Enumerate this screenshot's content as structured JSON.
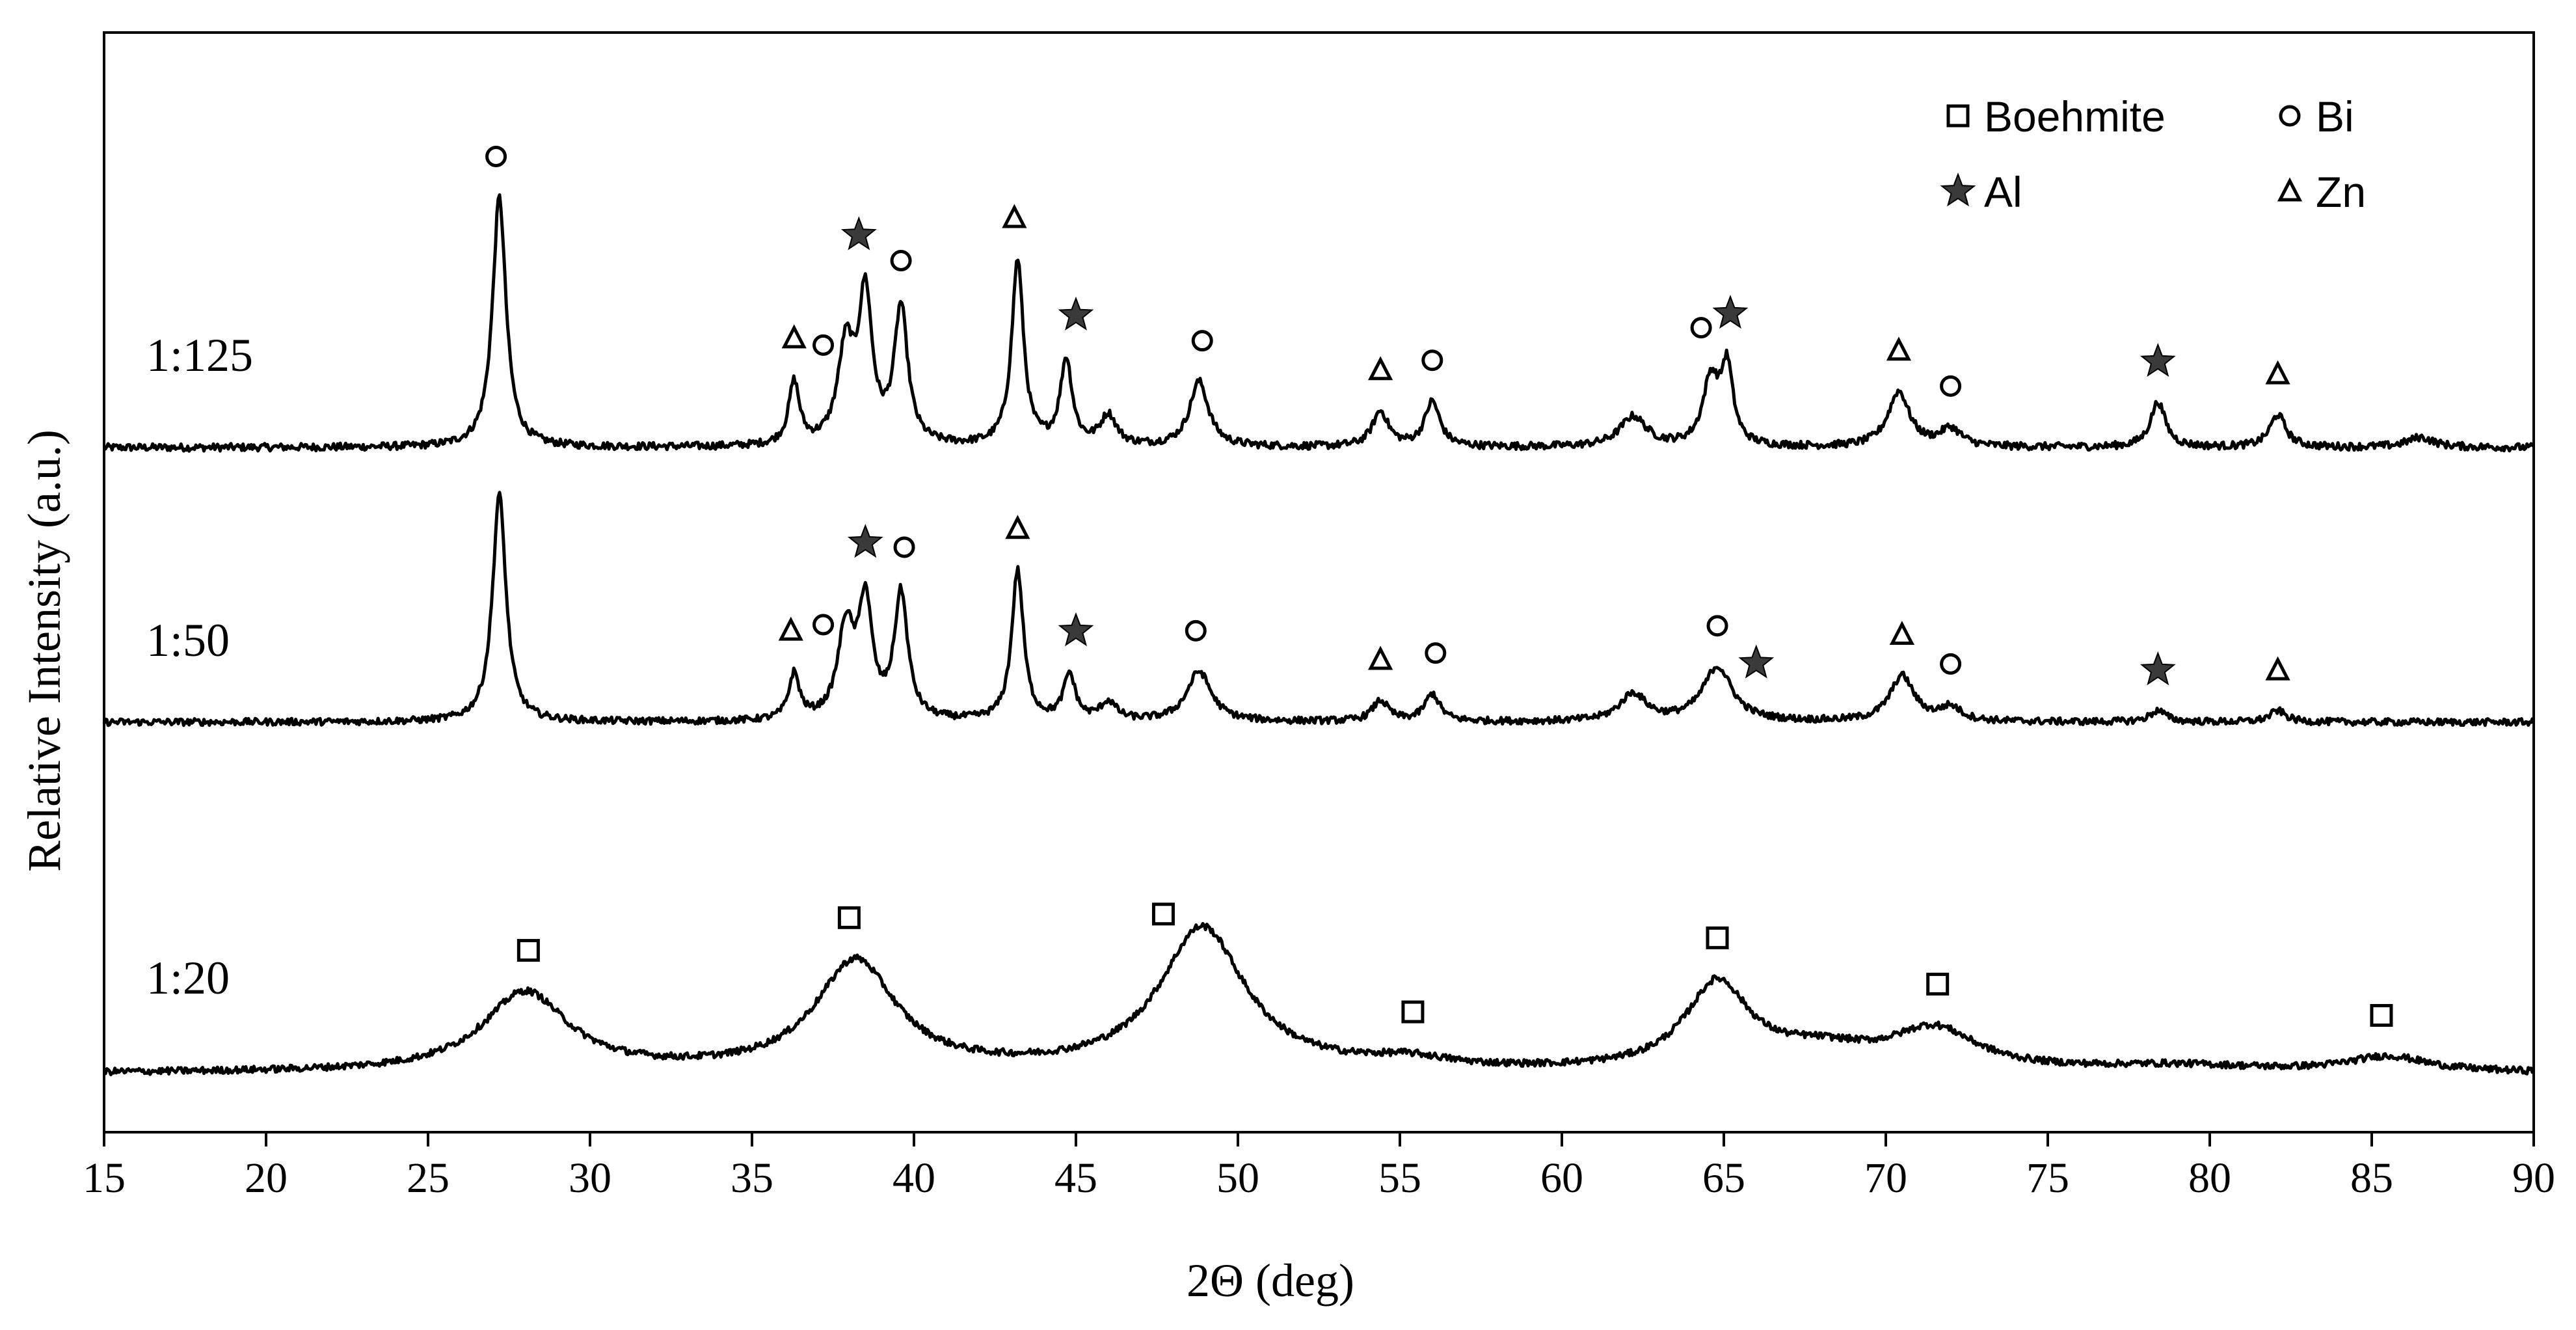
{
  "chart_data": {
    "type": "line",
    "xlabel": "2Θ (deg)",
    "ylabel": "Relative Intensity (a.u.)",
    "xlim": [
      15,
      90
    ],
    "xticks": [
      15,
      20,
      25,
      30,
      35,
      40,
      45,
      50,
      55,
      60,
      65,
      70,
      75,
      80,
      85,
      90
    ],
    "grid": false,
    "legend_position": "top-right",
    "legend": [
      {
        "label": "Boehmite",
        "marker": "square"
      },
      {
        "label": "Bi",
        "marker": "circle"
      },
      {
        "label": "Al",
        "marker": "star"
      },
      {
        "label": "Zn",
        "marker": "triangle"
      }
    ],
    "series": [
      {
        "name": "1:125",
        "baseline": 0,
        "peaks": [
          {
            "x": 27.2,
            "h": 1.0,
            "w": 0.25
          },
          {
            "x": 36.3,
            "h": 0.25,
            "w": 0.2
          },
          {
            "x": 37.9,
            "h": 0.38,
            "w": 0.3
          },
          {
            "x": 38.5,
            "h": 0.58,
            "w": 0.25
          },
          {
            "x": 39.6,
            "h": 0.54,
            "w": 0.25
          },
          {
            "x": 43.2,
            "h": 0.74,
            "w": 0.22
          },
          {
            "x": 44.7,
            "h": 0.34,
            "w": 0.22
          },
          {
            "x": 46.0,
            "h": 0.12,
            "w": 0.3
          },
          {
            "x": 48.8,
            "h": 0.26,
            "w": 0.35
          },
          {
            "x": 54.4,
            "h": 0.14,
            "w": 0.3
          },
          {
            "x": 56.0,
            "h": 0.18,
            "w": 0.28
          },
          {
            "x": 62.2,
            "h": 0.12,
            "w": 0.5
          },
          {
            "x": 64.6,
            "h": 0.26,
            "w": 0.3
          },
          {
            "x": 65.1,
            "h": 0.3,
            "w": 0.22
          },
          {
            "x": 70.4,
            "h": 0.22,
            "w": 0.4
          },
          {
            "x": 72.0,
            "h": 0.07,
            "w": 0.4
          },
          {
            "x": 78.4,
            "h": 0.18,
            "w": 0.28
          },
          {
            "x": 82.1,
            "h": 0.13,
            "w": 0.3
          },
          {
            "x": 86.5,
            "h": 0.04,
            "w": 0.5
          }
        ],
        "markers": [
          {
            "x": 27.1,
            "m": "circle"
          },
          {
            "x": 36.3,
            "m": "triangle"
          },
          {
            "x": 37.2,
            "m": "circle"
          },
          {
            "x": 38.3,
            "m": "star"
          },
          {
            "x": 39.6,
            "m": "circle"
          },
          {
            "x": 43.1,
            "m": "triangle"
          },
          {
            "x": 45.0,
            "m": "star"
          },
          {
            "x": 48.9,
            "m": "circle"
          },
          {
            "x": 54.4,
            "m": "triangle"
          },
          {
            "x": 56.0,
            "m": "circle"
          },
          {
            "x": 64.3,
            "m": "circle"
          },
          {
            "x": 65.2,
            "m": "star"
          },
          {
            "x": 70.4,
            "m": "triangle"
          },
          {
            "x": 72.0,
            "m": "circle"
          },
          {
            "x": 78.4,
            "m": "star"
          },
          {
            "x": 82.1,
            "m": "triangle"
          }
        ]
      },
      {
        "name": "1:50",
        "baseline": 0,
        "peaks": [
          {
            "x": 27.2,
            "h": 1.0,
            "w": 0.25
          },
          {
            "x": 36.3,
            "h": 0.2,
            "w": 0.2
          },
          {
            "x": 37.9,
            "h": 0.4,
            "w": 0.3
          },
          {
            "x": 38.5,
            "h": 0.5,
            "w": 0.25
          },
          {
            "x": 39.6,
            "h": 0.55,
            "w": 0.25
          },
          {
            "x": 43.2,
            "h": 0.66,
            "w": 0.22
          },
          {
            "x": 44.8,
            "h": 0.2,
            "w": 0.22
          },
          {
            "x": 46.0,
            "h": 0.08,
            "w": 0.3
          },
          {
            "x": 48.8,
            "h": 0.22,
            "w": 0.45
          },
          {
            "x": 54.4,
            "h": 0.09,
            "w": 0.3
          },
          {
            "x": 56.0,
            "h": 0.12,
            "w": 0.28
          },
          {
            "x": 62.2,
            "h": 0.12,
            "w": 0.5
          },
          {
            "x": 64.8,
            "h": 0.24,
            "w": 0.55
          },
          {
            "x": 70.5,
            "h": 0.2,
            "w": 0.45
          },
          {
            "x": 72.0,
            "h": 0.06,
            "w": 0.4
          },
          {
            "x": 78.4,
            "h": 0.05,
            "w": 0.3
          },
          {
            "x": 82.1,
            "h": 0.05,
            "w": 0.3
          }
        ],
        "markers": [
          {
            "x": 36.2,
            "m": "triangle"
          },
          {
            "x": 37.2,
            "m": "circle"
          },
          {
            "x": 38.5,
            "m": "star"
          },
          {
            "x": 39.7,
            "m": "circle"
          },
          {
            "x": 43.2,
            "m": "triangle"
          },
          {
            "x": 45.0,
            "m": "star"
          },
          {
            "x": 48.7,
            "m": "circle"
          },
          {
            "x": 54.4,
            "m": "triangle"
          },
          {
            "x": 56.1,
            "m": "circle"
          },
          {
            "x": 64.8,
            "m": "circle"
          },
          {
            "x": 66.0,
            "m": "star"
          },
          {
            "x": 70.5,
            "m": "triangle"
          },
          {
            "x": 72.0,
            "m": "circle"
          },
          {
            "x": 78.4,
            "m": "star"
          },
          {
            "x": 82.1,
            "m": "triangle"
          }
        ]
      },
      {
        "name": "1:20",
        "baseline": 0,
        "peaks": [
          {
            "x": 28.0,
            "h": 0.26,
            "w": 1.6
          },
          {
            "x": 38.2,
            "h": 0.36,
            "w": 1.5
          },
          {
            "x": 48.9,
            "h": 0.47,
            "w": 1.6
          },
          {
            "x": 55.3,
            "h": 0.03,
            "w": 1.5
          },
          {
            "x": 64.8,
            "h": 0.28,
            "w": 1.2
          },
          {
            "x": 68.0,
            "h": 0.06,
            "w": 2.0
          },
          {
            "x": 71.5,
            "h": 0.13,
            "w": 1.6
          },
          {
            "x": 79.0,
            "h": 0.02,
            "w": 3.0
          },
          {
            "x": 85.5,
            "h": 0.05,
            "w": 1.5
          }
        ],
        "markers": [
          {
            "x": 28.1,
            "m": "square"
          },
          {
            "x": 38.0,
            "m": "square"
          },
          {
            "x": 47.7,
            "m": "square"
          },
          {
            "x": 55.4,
            "m": "square"
          },
          {
            "x": 64.8,
            "m": "square"
          },
          {
            "x": 71.6,
            "m": "square"
          },
          {
            "x": 85.3,
            "m": "square"
          }
        ]
      }
    ]
  }
}
